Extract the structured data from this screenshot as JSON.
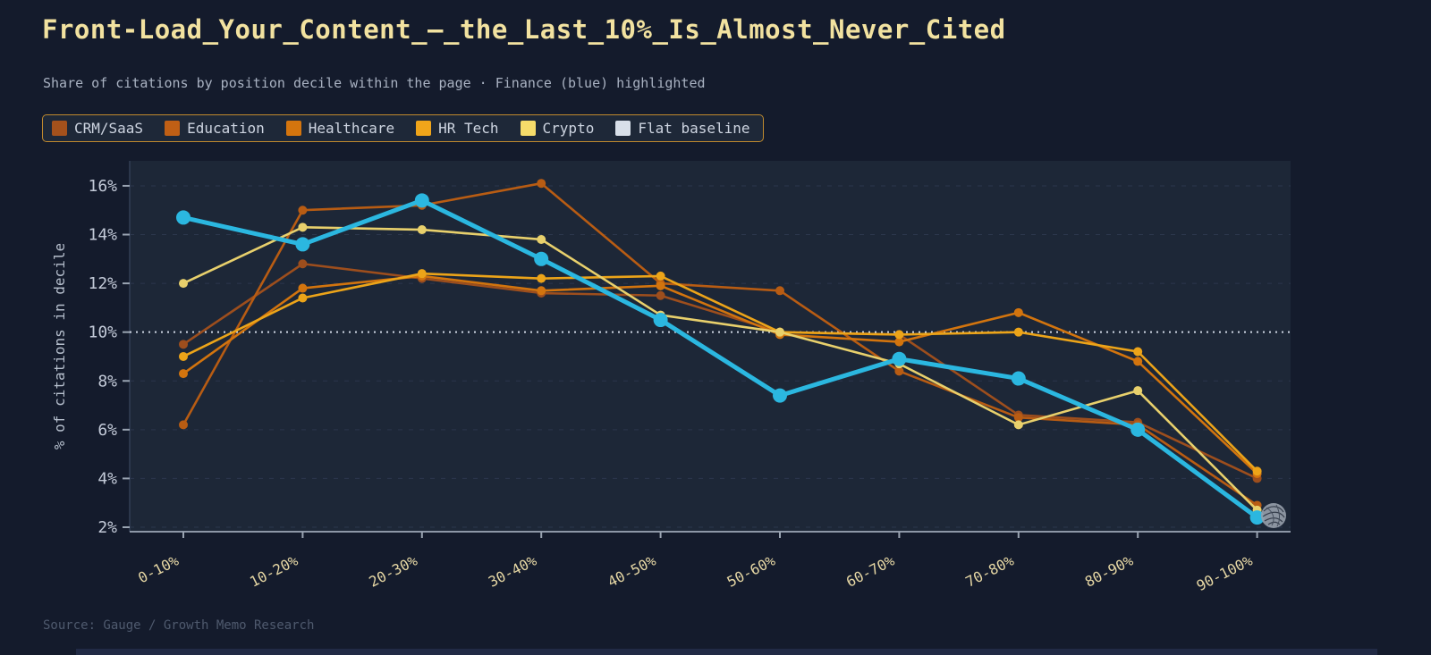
{
  "page": {
    "title": "Front-Load_Your_Content_—_the_Last_10%_Is_Almost_Never_Cited",
    "subtitle": "Share of citations by position decile within the page · Finance (blue) highlighted",
    "source": "Source: Gauge / Growth Memo Research",
    "background_color": "#141b2c",
    "title_color": "#f2e2a0",
    "watermark": "scribble-stamp"
  },
  "legend": {
    "position": "top-left",
    "border_color": "#c08a2e",
    "items": [
      {
        "label": "CRM/SaaS",
        "color": "#a4511c"
      },
      {
        "label": "Education",
        "color": "#c05f15"
      },
      {
        "label": "Healthcare",
        "color": "#d4750e"
      },
      {
        "label": "HR Tech",
        "color": "#f0a51a"
      },
      {
        "label": "Crypto",
        "color": "#f6dc6a"
      },
      {
        "label": "Flat baseline",
        "color": "#d8dfe9"
      }
    ]
  },
  "chart_data": {
    "type": "line",
    "title": "Front-Load_Your_Content_—_the_Last_10%_Is_Almost_Never_Cited",
    "subtitle": "Share of citations by position decile within the page · Finance (blue) highlighted",
    "xlabel": "",
    "ylabel": "% of citations in decile",
    "ylim": [
      2,
      16
    ],
    "yticks": [
      2,
      4,
      6,
      8,
      10,
      12,
      14,
      16
    ],
    "ytick_suffix": "%",
    "grid": "horizontal-dashed",
    "legend_position": "top-left",
    "categories": [
      "0-10%",
      "10-20%",
      "20-30%",
      "30-40%",
      "40-50%",
      "50-60%",
      "60-70%",
      "70-80%",
      "80-90%",
      "90-100%"
    ],
    "baseline": {
      "name": "Flat baseline",
      "value": 10,
      "color": "#cfd7e4",
      "style": "dotted"
    },
    "series": [
      {
        "name": "CRM/SaaS",
        "color": "#9d4e1d",
        "values": [
          9.5,
          12.8,
          12.2,
          11.6,
          11.5,
          10.0,
          9.9,
          6.6,
          6.3,
          4.0
        ]
      },
      {
        "name": "Education",
        "color": "#b85c13",
        "values": [
          6.2,
          15.0,
          15.2,
          16.1,
          12.0,
          11.7,
          8.4,
          6.5,
          6.2,
          2.9
        ]
      },
      {
        "name": "Healthcare",
        "color": "#d2740e",
        "values": [
          8.3,
          11.8,
          12.3,
          11.7,
          11.9,
          9.9,
          9.6,
          10.8,
          8.8,
          4.2
        ]
      },
      {
        "name": "HR Tech",
        "color": "#eca419",
        "values": [
          9.0,
          11.4,
          12.4,
          12.2,
          12.3,
          10.0,
          9.9,
          10.0,
          9.2,
          4.3
        ]
      },
      {
        "name": "Crypto",
        "color": "#e8d06c",
        "values": [
          12.0,
          14.3,
          14.2,
          13.8,
          10.7,
          10.0,
          8.7,
          6.2,
          7.6,
          2.7
        ]
      },
      {
        "name": "Finance",
        "color": "#2bb7e0",
        "values": [
          14.7,
          13.6,
          15.4,
          13.0,
          10.5,
          7.4,
          8.9,
          8.1,
          6.0,
          2.4
        ],
        "emphasis": true
      }
    ]
  }
}
